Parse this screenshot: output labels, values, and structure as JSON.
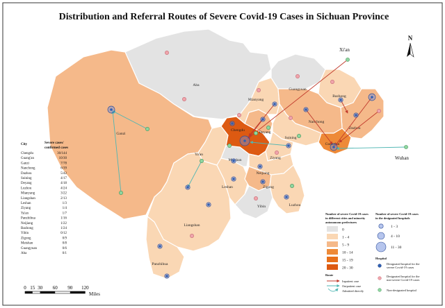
{
  "title": "Distribution and Referral Routes of Severe Covid-19 Cases in Sichuan Province",
  "north_label": "N",
  "colors": {
    "c0": "#e3e3e3",
    "c1": "#fad7b4",
    "c2": "#f5b98a",
    "c3": "#ee8a38",
    "c4": "#e8701a",
    "c5": "#dd5a12",
    "border": "#ffffff",
    "outline": "#1a1a1a",
    "designated": "#2f5fb3",
    "nonsevere": "#f0a5ac",
    "nondesignated": "#8fd6a0",
    "inpatient": "#c0392b",
    "outpatient": "#4fb6b3",
    "admitted": "#4fb6b3"
  },
  "regions": [
    {
      "name": "Aba",
      "cls": 0
    },
    {
      "name": "Ganzi",
      "cls": 2
    },
    {
      "name": "Liangshan",
      "cls": 1
    },
    {
      "name": "Panzhihua",
      "cls": 1
    },
    {
      "name": "Ya'an",
      "cls": 1
    },
    {
      "name": "Leshan",
      "cls": 1
    },
    {
      "name": "Meishan",
      "cls": 0
    },
    {
      "name": "Chengdu",
      "cls": 5
    },
    {
      "name": "Deyang",
      "cls": 2
    },
    {
      "name": "Mianyang",
      "cls": 1
    },
    {
      "name": "Guangyuan",
      "cls": 0
    },
    {
      "name": "Bazhong",
      "cls": 1
    },
    {
      "name": "Dazhou",
      "cls": 2
    },
    {
      "name": "Nanchong",
      "cls": 2
    },
    {
      "name": "Guang'an",
      "cls": 3
    },
    {
      "name": "Suining",
      "cls": 1
    },
    {
      "name": "Ziyang",
      "cls": 1
    },
    {
      "name": "Neijiang",
      "cls": 1
    },
    {
      "name": "Zigong",
      "cls": 2
    },
    {
      "name": "Yibin",
      "cls": 0
    },
    {
      "name": "Luzhou",
      "cls": 1
    }
  ],
  "external": {
    "xian": "Xi'an",
    "wuhan": "Wuhan"
  },
  "table": {
    "header_city": "City",
    "header_cases_1": "Severe cases/",
    "header_cases_2": "confirmed cases",
    "rows": [
      {
        "city": "Chengdu",
        "cases": "30/144"
      },
      {
        "city": "Guang'an",
        "cases": "10/30"
      },
      {
        "city": "Ganzi",
        "cases": "7/78"
      },
      {
        "city": "Nanchong",
        "cases": "6/39"
      },
      {
        "city": "Dazhou",
        "cases": "5/42"
      },
      {
        "city": "Suining",
        "cases": "4/17"
      },
      {
        "city": "Deyang",
        "cases": "4/18"
      },
      {
        "city": "Luzhou",
        "cases": "4/24"
      },
      {
        "city": "Mianyang",
        "cases": "3/22"
      },
      {
        "city": "Liangshan",
        "cases": "2/13"
      },
      {
        "city": "Leshan",
        "cases": "1/3"
      },
      {
        "city": "Ziyang",
        "cases": "1/4"
      },
      {
        "city": "Ya'an",
        "cases": "1/7"
      },
      {
        "city": "Panzhihua",
        "cases": "1/16"
      },
      {
        "city": "Neijiang",
        "cases": "1/22"
      },
      {
        "city": "Bazhong",
        "cases": "1/24"
      },
      {
        "city": "Yibin",
        "cases": "0/12"
      },
      {
        "city": "Zigong",
        "cases": "0/9"
      },
      {
        "city": "Meishan",
        "cases": "0/8"
      },
      {
        "city": "Guangyuan",
        "cases": "0/6"
      },
      {
        "city": "Aba",
        "cases": "0/1"
      }
    ]
  },
  "legend_classes": {
    "title_1": "Number of severe Covid-19 cases",
    "title_2": "in different cities and minority",
    "title_3": "autonomous prefectures",
    "items": [
      {
        "label": "0",
        "cls": 0
      },
      {
        "label": "1 - 4",
        "cls": 1
      },
      {
        "label": "5 - 9",
        "cls": 2
      },
      {
        "label": "10 - 14",
        "cls": 3
      },
      {
        "label": "15 - 19",
        "cls": 4
      },
      {
        "label": "20 - 30",
        "cls": 5
      }
    ]
  },
  "legend_hospital_size": {
    "title_1": "Number of severe Covid-19 cases",
    "title_2": "in the designated hospitals",
    "items": [
      {
        "label": "1 - 3",
        "size": 1
      },
      {
        "label": "4 - 10",
        "size": 2
      },
      {
        "label": "11 - 30",
        "size": 3
      }
    ]
  },
  "legend_hospital": {
    "title": "Hospital",
    "designated_1": "Designated hospital for the",
    "designated_2": "severe Covid-19 cases",
    "nonsevere_1": "Designated hospital for the",
    "nonsevere_2": "non-severe Covid-19 cases",
    "nondesignated": "Non-designated hospital"
  },
  "legend_route": {
    "title": "Route",
    "inpatient": "Inpatient case",
    "outpatient": "Outpatient case",
    "admitted": "Admitted directly"
  },
  "scale_bar": {
    "ticks": [
      0,
      15,
      30,
      60,
      90,
      120
    ],
    "unit": "Miles"
  },
  "hospitals": [
    {
      "city": "Ganzi",
      "type": "designated",
      "size": 2
    },
    {
      "city": "Ganzi",
      "type": "nondesignated"
    },
    {
      "city": "Ganzi",
      "type": "nondesignated"
    },
    {
      "city": "Aba",
      "type": "nonsevere"
    },
    {
      "city": "Aba",
      "type": "nonsevere"
    },
    {
      "city": "Ya'an",
      "type": "designated",
      "size": 1
    },
    {
      "city": "Ya'an",
      "type": "nondesignated"
    },
    {
      "city": "Liangshan",
      "type": "designated",
      "size": 1
    },
    {
      "city": "Liangshan",
      "type": "nonsevere"
    },
    {
      "city": "Panzhihua",
      "type": "designated",
      "size": 1
    },
    {
      "city": "Panzhihua",
      "type": "designated",
      "size": 1
    },
    {
      "city": "Chengdu",
      "type": "designated",
      "size": 3
    },
    {
      "city": "Chengdu",
      "type": "designated",
      "size": 1
    },
    {
      "city": "Chengdu",
      "type": "nondesignated"
    },
    {
      "city": "Chengdu",
      "type": "nondesignated"
    },
    {
      "city": "Chengdu",
      "type": "nonsevere"
    },
    {
      "city": "Deyang",
      "type": "designated",
      "size": 1
    },
    {
      "city": "Deyang",
      "type": "nondesignated"
    },
    {
      "city": "Mianyang",
      "type": "designated",
      "size": 1
    },
    {
      "city": "Mianyang",
      "type": "nonsevere"
    },
    {
      "city": "Guangyuan",
      "type": "nonsevere"
    },
    {
      "city": "Bazhong",
      "type": "designated",
      "size": 1
    },
    {
      "city": "Bazhong",
      "type": "nonsevere"
    },
    {
      "city": "Dazhou",
      "type": "designated",
      "size": 2
    },
    {
      "city": "Dazhou",
      "type": "designated",
      "size": 1
    },
    {
      "city": "Dazhou",
      "type": "nonsevere"
    },
    {
      "city": "Nanchong",
      "type": "designated",
      "size": 1
    },
    {
      "city": "Nanchong",
      "type": "nonsevere"
    },
    {
      "city": "Guang'an",
      "type": "designated",
      "size": 2
    },
    {
      "city": "Suining",
      "type": "designated",
      "size": 1
    },
    {
      "city": "Suining",
      "type": "nondesignated"
    },
    {
      "city": "Ziyang",
      "type": "nonsevere"
    },
    {
      "city": "Meishan",
      "type": "designated",
      "size": 1
    },
    {
      "city": "Neijiang",
      "type": "designated",
      "size": 1
    },
    {
      "city": "Zigong",
      "type": "designated",
      "size": 1
    },
    {
      "city": "Yibin",
      "type": "nonsevere"
    },
    {
      "city": "Luzhou",
      "type": "designated",
      "size": 1
    },
    {
      "city": "Luzhou",
      "type": "nondesignated"
    },
    {
      "city": "Leshan",
      "type": "designated",
      "size": 1
    }
  ],
  "routes": [
    {
      "from": "Xi'an",
      "to": "Chengdu",
      "type": "inpatient"
    },
    {
      "from": "Wuhan",
      "to": "Guang'an",
      "type": "outpatient"
    },
    {
      "from": "Ganzi",
      "to": "Ganzi",
      "type": "outpatient"
    },
    {
      "from": "Ya'an",
      "to": "Ya'an",
      "type": "outpatient"
    },
    {
      "from": "Bazhong",
      "to": "Dazhou",
      "type": "inpatient"
    },
    {
      "from": "Dazhou",
      "to": "Guang'an",
      "type": "inpatient"
    },
    {
      "from": "Nanchong",
      "to": "Guang'an",
      "type": "inpatient"
    },
    {
      "from": "Suining",
      "to": "Chengdu",
      "type": "outpatient"
    },
    {
      "from": "Deyang",
      "to": "Chengdu",
      "type": "inpatient"
    },
    {
      "from": "Mianyang",
      "to": "Chengdu",
      "type": "inpatient"
    }
  ]
}
